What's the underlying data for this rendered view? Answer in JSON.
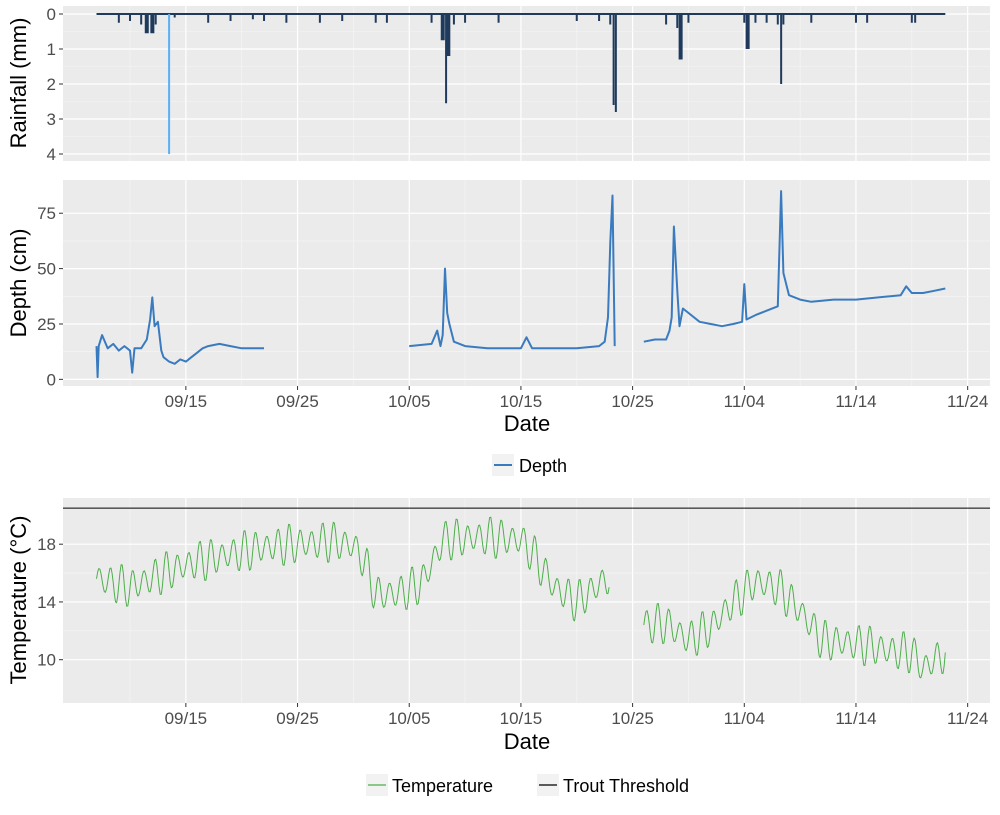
{
  "chart_data": [
    {
      "type": "bar",
      "panel": "rainfall",
      "ylabel": "Rainfall (mm)",
      "ylim": [
        0,
        4.2
      ],
      "y_reversed": true,
      "y_ticks": [
        "0",
        "1",
        "2",
        "3",
        "4"
      ],
      "grid": true,
      "x_range": [
        "2016-09-04",
        "2016-11-26"
      ],
      "colors": {
        "dark": "#1f3a5c",
        "light": "#56b1f7"
      },
      "series": [
        {
          "x": [
            "09-09",
            "09-10",
            "09-11",
            "09-11.5",
            "09-12",
            "09-12.3",
            "09-13.5",
            "09-14",
            "09-17",
            "09-19",
            "09-21",
            "09-22",
            "09-24",
            "09-27",
            "09-29",
            "10-02",
            "10-03",
            "10-07",
            "10-08",
            "10-08.3",
            "10-08.5",
            "10-09",
            "10-10",
            "10-13",
            "10-20",
            "10-22",
            "10-23",
            "10-23.3",
            "10-23.5",
            "10-28",
            "10-29",
            "10-29.3",
            "10-30",
            "11-04",
            "11-04.3",
            "11-05",
            "11-06",
            "11-07",
            "11-07.3",
            "11-07.5",
            "11-10",
            "11-14",
            "11-15",
            "11-19",
            "11-19.3"
          ],
          "values": [
            0.25,
            0.2,
            0.3,
            0.55,
            0.55,
            0.3,
            4.0,
            0.1,
            0.25,
            0.2,
            0.15,
            0.2,
            0.25,
            0.25,
            0.2,
            0.25,
            0.25,
            0.25,
            0.75,
            2.55,
            1.2,
            0.3,
            0.25,
            0.25,
            0.2,
            0.2,
            0.3,
            2.6,
            2.8,
            0.3,
            0.4,
            1.3,
            0.25,
            0.25,
            1.0,
            0.25,
            0.25,
            0.3,
            2.0,
            0.3,
            0.25,
            0.25,
            0.25,
            0.25,
            0.25
          ]
        }
      ]
    },
    {
      "type": "line",
      "panel": "depth",
      "xlabel": "Date",
      "ylabel": "Depth (cm)",
      "ylim": [
        -3,
        90
      ],
      "y_ticks": [
        "0",
        "25",
        "50",
        "75"
      ],
      "x_ticks": [
        "09/15",
        "09/25",
        "10/05",
        "10/15",
        "10/25",
        "11/04",
        "11/14",
        "11/24"
      ],
      "grid": true,
      "legend": "bottom",
      "series": [
        {
          "name": "Depth",
          "color": "#3a7bbf",
          "points": [
            [
              "09-07",
              15
            ],
            [
              "09-07.1",
              1
            ],
            [
              "09-07.2",
              15
            ],
            [
              "09-07.5",
              20
            ],
            [
              "09-08",
              14
            ],
            [
              "09-08.5",
              16
            ],
            [
              "09-09",
              13
            ],
            [
              "09-09.5",
              15
            ],
            [
              "09-10",
              13
            ],
            [
              "09-10.2",
              3
            ],
            [
              "09-10.4",
              14
            ],
            [
              "09-11",
              14
            ],
            [
              "09-11.5",
              18
            ],
            [
              "09-11.8",
              27
            ],
            [
              "09-12",
              37
            ],
            [
              "09-12.2",
              24
            ],
            [
              "09-12.5",
              26
            ],
            [
              "09-12.8",
              13
            ],
            [
              "09-13",
              10
            ],
            [
              "09-13.5",
              8
            ],
            [
              "09-14",
              7
            ],
            [
              "09-14.5",
              9
            ],
            [
              "09-15",
              8
            ],
            [
              "09-15.5",
              10
            ],
            [
              "09-16",
              12
            ],
            [
              "09-16.5",
              14
            ],
            [
              "09-17",
              15
            ],
            [
              "09-18",
              16
            ],
            [
              "09-19",
              15
            ],
            [
              "09-20",
              14
            ],
            [
              "09-22",
              14
            ],
            [
              "09-25",
              15
            ],
            [
              "09-28",
              15
            ],
            [
              "10-01",
              15
            ],
            [
              "10-05",
              15
            ],
            [
              "10-07",
              16
            ],
            [
              "10-07.5",
              22
            ],
            [
              "10-07.8",
              15
            ],
            [
              "10-08",
              20
            ],
            [
              "10-08.2",
              50
            ],
            [
              "10-08.4",
              30
            ],
            [
              "10-08.6",
              25
            ],
            [
              "10-09",
              17
            ],
            [
              "10-10",
              15
            ],
            [
              "10-12",
              14
            ],
            [
              "10-14",
              14
            ],
            [
              "10-15",
              14
            ],
            [
              "10-15.5",
              19
            ],
            [
              "10-16",
              14
            ],
            [
              "10-18",
              14
            ],
            [
              "10-20",
              14
            ],
            [
              "10-22",
              15
            ],
            [
              "10-22.5",
              17
            ],
            [
              "10-22.8",
              28
            ],
            [
              "10-23",
              62
            ],
            [
              "10-23.2",
              83
            ],
            [
              "10-23.4",
              15
            ],
            [
              "10-26",
              17
            ],
            [
              "10-27",
              18
            ],
            [
              "10-28",
              18
            ],
            [
              "10-28.3",
              22
            ],
            [
              "10-28.5",
              28
            ],
            [
              "10-28.7",
              69
            ],
            [
              "10-29",
              40
            ],
            [
              "10-29.2",
              24
            ],
            [
              "10-29.5",
              32
            ],
            [
              "10-30",
              30
            ],
            [
              "10-31",
              26
            ],
            [
              "11-01",
              25
            ],
            [
              "11-02",
              24
            ],
            [
              "11-03",
              25
            ],
            [
              "11-03.8",
              26
            ],
            [
              "11-04",
              43
            ],
            [
              "11-04.2",
              27
            ],
            [
              "11-05",
              29
            ],
            [
              "11-06",
              31
            ],
            [
              "11-07",
              33
            ],
            [
              "11-07.3",
              85
            ],
            [
              "11-07.5",
              48
            ],
            [
              "11-08",
              38
            ],
            [
              "11-09",
              36
            ],
            [
              "11-10",
              35
            ],
            [
              "11-12",
              36
            ],
            [
              "11-14",
              36
            ],
            [
              "11-16",
              37
            ],
            [
              "11-18",
              38
            ],
            [
              "11-18.5",
              42
            ],
            [
              "11-19",
              39
            ],
            [
              "11-20",
              39
            ],
            [
              "11-21",
              40
            ],
            [
              "11-22",
              41
            ]
          ]
        }
      ]
    },
    {
      "type": "line",
      "panel": "temperature",
      "xlabel": "Date",
      "ylabel": "Temperature (°C)",
      "ylim": [
        7,
        21.2
      ],
      "y_ticks": [
        "10",
        "14",
        "18"
      ],
      "x_ticks": [
        "09/15",
        "09/25",
        "10/05",
        "10/15",
        "10/25",
        "11/04",
        "11/14",
        "11/24"
      ],
      "grid": true,
      "legend": "bottom",
      "series": [
        {
          "name": "Temperature",
          "color": "#4daf4a",
          "gap_after": "10-23",
          "daily_mean": [
            [
              "09-07",
              15.6
            ],
            [
              "09-10",
              15.0
            ],
            [
              "09-13",
              16.0
            ],
            [
              "09-16",
              16.8
            ],
            [
              "09-19",
              17.3
            ],
            [
              "09-22",
              17.8
            ],
            [
              "09-25",
              18.0
            ],
            [
              "09-28",
              18.2
            ],
            [
              "09-30",
              17.9
            ],
            [
              "10-01",
              16.8
            ],
            [
              "10-02",
              14.5
            ],
            [
              "10-04",
              14.6
            ],
            [
              "10-06",
              15.2
            ],
            [
              "10-07",
              16.6
            ],
            [
              "10-08",
              18.3
            ],
            [
              "10-12",
              18.5
            ],
            [
              "10-15",
              18.3
            ],
            [
              "10-16",
              17.4
            ],
            [
              "10-18",
              15.0
            ],
            [
              "10-20",
              14.0
            ],
            [
              "10-23",
              15.8
            ],
            [
              "10-26",
              12.4
            ],
            [
              "10-28",
              12.5
            ],
            [
              "10-30",
              11.4
            ],
            [
              "11-01",
              12.2
            ],
            [
              "11-03",
              14.0
            ],
            [
              "11-05",
              15.4
            ],
            [
              "11-07",
              15.0
            ],
            [
              "11-09",
              13.4
            ],
            [
              "11-11",
              11.3
            ],
            [
              "11-13",
              11.2
            ],
            [
              "11-15",
              11.0
            ],
            [
              "11-17",
              10.6
            ],
            [
              "11-19",
              10.5
            ],
            [
              "11-20",
              9.4
            ],
            [
              "11-22",
              10.5
            ]
          ],
          "daily_amplitude": 1.5
        },
        {
          "name": "Trout Threshold",
          "color": "#000000",
          "value": 20.5
        }
      ]
    }
  ]
}
